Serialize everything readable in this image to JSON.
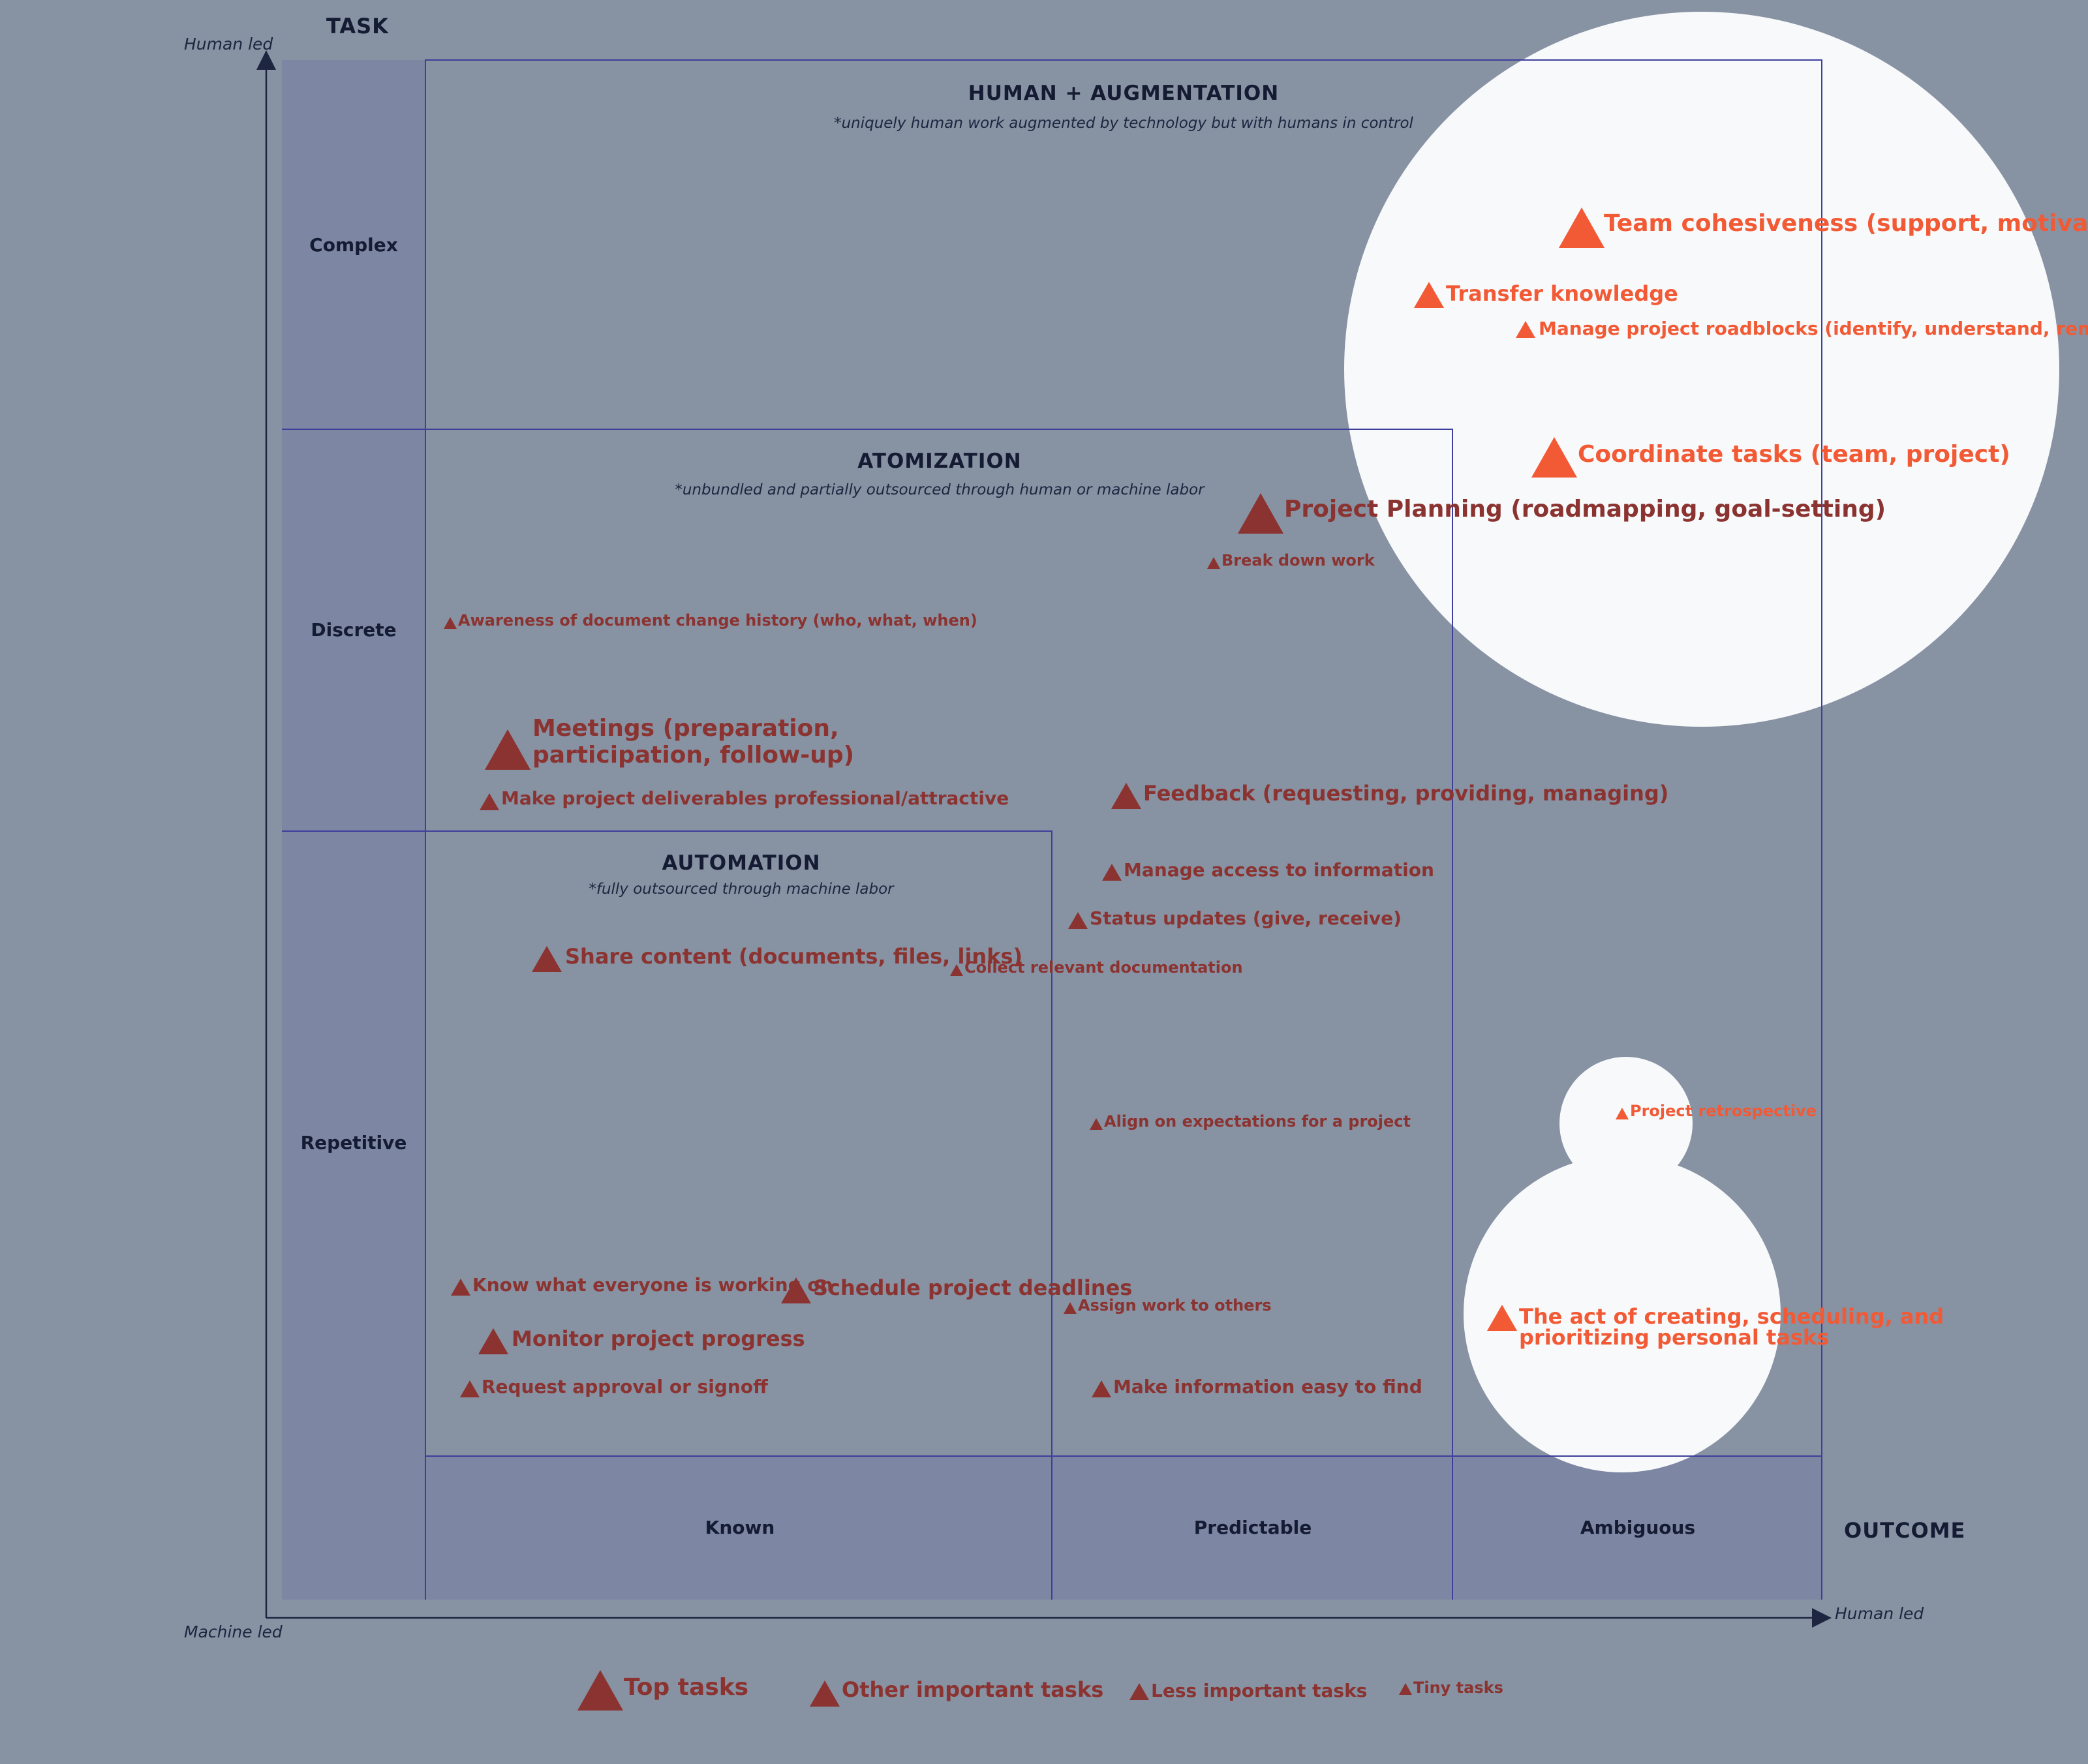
{
  "axes": {
    "y_title": "TASK",
    "y_top": "Human led",
    "x_left": "Machine led",
    "x_title": "OUTCOME",
    "x_right": "Human led"
  },
  "rows": [
    "Complex",
    "Discrete",
    "Repetitive"
  ],
  "columns": [
    "Known",
    "Predictable",
    "Ambiguous"
  ],
  "zones": {
    "augmentation": {
      "title": "HUMAN + AUGMENTATION",
      "subtitle": "*uniquely human work augmented by technology but with humans in control"
    },
    "atomization": {
      "title": "ATOMIZATION",
      "subtitle": "*unbundled and partially outsourced through human or machine labor"
    },
    "automation": {
      "title": "AUTOMATION",
      "subtitle": "*fully outsourced through machine labor"
    }
  },
  "tasks": [
    {
      "label": "Team cohesiveness (support, motivate)",
      "size": "top",
      "highlight": true
    },
    {
      "label": "Transfer knowledge",
      "size": "important",
      "highlight": true
    },
    {
      "label": "Manage project roadblocks (identify, understand, remove)",
      "size": "less",
      "highlight": true
    },
    {
      "label": "Coordinate tasks (team, project)",
      "size": "top",
      "highlight": true
    },
    {
      "label": "Project Planning (roadmapping, goal-setting)",
      "size": "top",
      "highlight": false
    },
    {
      "label": "Break down work",
      "size": "tiny",
      "highlight": false
    },
    {
      "label": "Awareness of document change history (who, what, when)",
      "size": "tiny",
      "highlight": false
    },
    {
      "label": "Meetings (preparation, participation, follow-up)",
      "size": "top",
      "highlight": false
    },
    {
      "label": "Make project deliverables professional/attractive",
      "size": "less",
      "highlight": false
    },
    {
      "label": "Feedback (requesting, providing, managing)",
      "size": "important",
      "highlight": false
    },
    {
      "label": "Manage access to information",
      "size": "less",
      "highlight": false
    },
    {
      "label": "Status updates (give, receive)",
      "size": "less",
      "highlight": false
    },
    {
      "label": "Share content (documents, files, links)",
      "size": "important",
      "highlight": false
    },
    {
      "label": "Collect relevant documentation",
      "size": "tiny",
      "highlight": false
    },
    {
      "label": "Align on expectations for a project",
      "size": "tiny",
      "highlight": false
    },
    {
      "label": "Project retrospective",
      "size": "tiny",
      "highlight": true
    },
    {
      "label": "Know what everyone is working on",
      "size": "less",
      "highlight": false
    },
    {
      "label": "Schedule project deadlines",
      "size": "important",
      "highlight": false
    },
    {
      "label": "Assign work to others",
      "size": "tiny",
      "highlight": false
    },
    {
      "label": "Monitor project progress",
      "size": "important",
      "highlight": false
    },
    {
      "label": "The act of creating, scheduling, and prioritizing personal tasks",
      "size": "important",
      "highlight": true
    },
    {
      "label": "Request approval or signoff",
      "size": "less",
      "highlight": false
    },
    {
      "label": "Make information easy to find",
      "size": "less",
      "highlight": false
    }
  ],
  "legend": [
    {
      "label": "Top tasks",
      "size": "top"
    },
    {
      "label": "Other important tasks",
      "size": "important"
    },
    {
      "label": "Less important tasks",
      "size": "less"
    },
    {
      "label": "Tiny tasks",
      "size": "tiny"
    }
  ],
  "colors": {
    "background": "#8792a3",
    "header_band": "#7d86a2",
    "grid_line": "#3d3f9a",
    "task": "#8b3330",
    "task_highlight": "#f25a35",
    "highlight_circle": "#f8f9fb",
    "text": "#141b33"
  }
}
